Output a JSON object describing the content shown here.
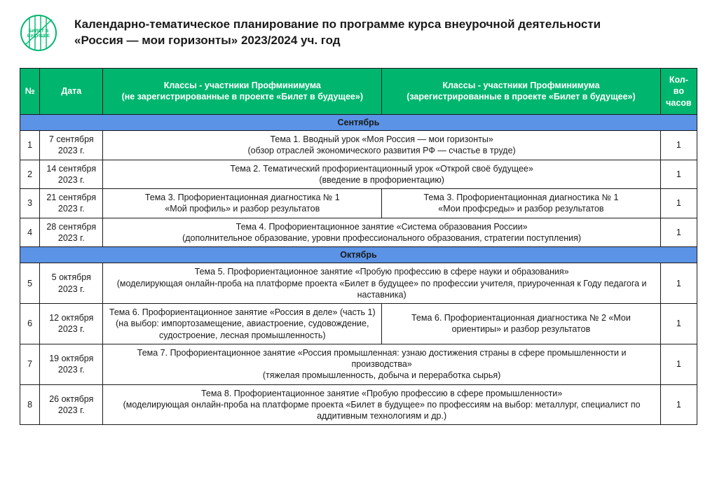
{
  "colors": {
    "header_bg": "#00b66f",
    "header_text": "#ffffff",
    "month_bg": "#5b93e6",
    "border": "#1a1a1a",
    "text": "#1a1a1a",
    "logo_stroke": "#00b66f"
  },
  "logo": {
    "label": "БИЛЕТ В БУДУЩЕЕ"
  },
  "title_line1": "Календарно-тематическое планирование по программе курса внеурочной деятельности",
  "title_line2": "«Россия — мои горизонты» 2023/2024 уч. год",
  "columns": {
    "num": "№",
    "date": "Дата",
    "content_unreg": "Классы - участники Профминимума\n(не зарегистрированные в проекте «Билет в будущее»)",
    "content_reg": "Классы - участники Профминимума\n(зарегистрированные в проекте «Билет в будущее»)",
    "hours": "Кол-во\nчасов"
  },
  "months": {
    "sep": "Сентябрь",
    "oct": "Октябрь"
  },
  "rows": [
    {
      "num": "1",
      "date": "7 сентября 2023 г.",
      "merged": true,
      "main": "Тема 1. Вводный урок «Моя Россия — мои горизонты»",
      "sub": "(обзор отраслей экономического развития РФ — счастье в труде)",
      "hours": "1"
    },
    {
      "num": "2",
      "date": "14 сентября 2023 г.",
      "merged": true,
      "main": "Тема 2. Тематический профориентационный урок «Открой своё будущее»",
      "sub": "(введение в профориентацию)",
      "hours": "1"
    },
    {
      "num": "3",
      "date": "21 сентября 2023 г.",
      "merged": false,
      "left_main": "Тема 3. Профориентационная диагностика № 1",
      "left_sub": "«Мой профиль» и разбор результатов",
      "right_main": "Тема 3. Профориентационная диагностика № 1",
      "right_sub": "«Мои профсреды» и разбор результатов",
      "hours": "1"
    },
    {
      "num": "4",
      "date": "28 сентября 2023 г.",
      "merged": true,
      "main": "Тема 4. Профориентационное занятие «Система образования России»",
      "sub": "(дополнительное образование, уровни профессионального образования, стратегии поступления)",
      "hours": "1"
    },
    {
      "num": "5",
      "date": "5 октября 2023 г.",
      "merged": true,
      "main": "Тема 5. Профориентационное занятие «Пробую профессию в сфере науки и образования»",
      "sub": "(моделирующая онлайн-проба на платформе проекта «Билет в будущее» по профессии учителя, приуроченная к Году педагога и наставника)",
      "hours": "1"
    },
    {
      "num": "6",
      "date": "12 октября 2023 г.",
      "merged": false,
      "left_main": "Тема 6. Профориентационное занятие «Россия в деле» (часть 1)",
      "left_sub": "(на выбор: импортозамещение, авиастроение, судовождение, судостроение, лесная промышленность)",
      "right_main": "Тема 6. Профориентационная диагностика № 2 «Мои ориентиры» и разбор результатов",
      "right_sub": "",
      "hours": "1"
    },
    {
      "num": "7",
      "date": "19 октября 2023 г.",
      "merged": true,
      "main": "Тема 7. Профориентационное занятие «Россия промышленная: узнаю достижения страны в сфере промышленности и производства»",
      "sub": "(тяжелая промышленность, добыча и переработка сырья)",
      "hours": "1"
    },
    {
      "num": "8",
      "date": "26 октября 2023 г.",
      "merged": true,
      "main": "Тема 8. Профориентационное занятие «Пробую профессию в сфере промышленности»",
      "sub": "(моделирующая онлайн-проба на платформе проекта «Билет в будущее» по профессиям на выбор: металлург, специалист по аддитивным технологиям и др.)",
      "hours": "1"
    }
  ]
}
